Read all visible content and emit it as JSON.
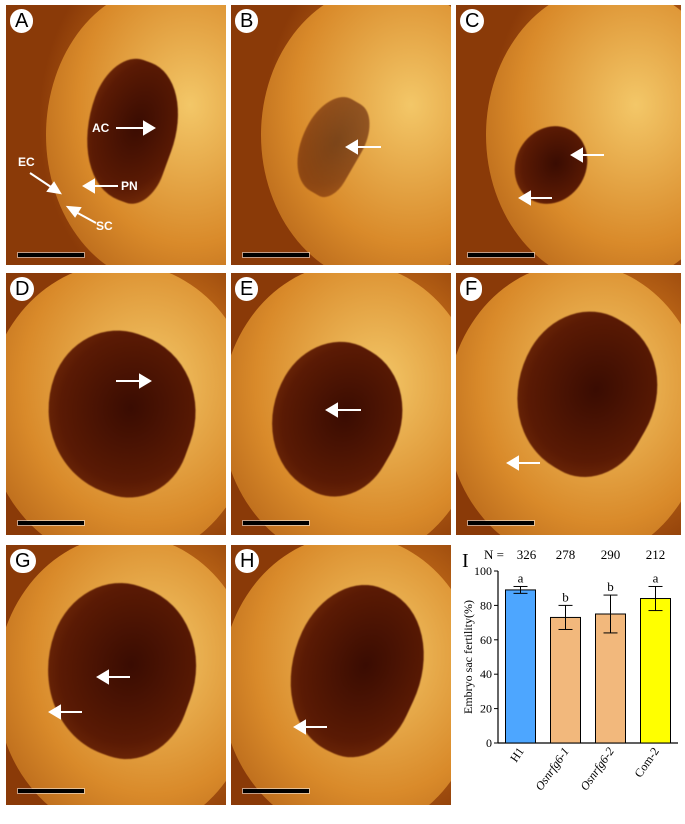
{
  "panels": [
    {
      "letter": "A",
      "labels": [
        "AC",
        "EC",
        "PN",
        "SC"
      ]
    },
    {
      "letter": "B",
      "labels": []
    },
    {
      "letter": "C",
      "labels": []
    },
    {
      "letter": "D",
      "labels": []
    },
    {
      "letter": "E",
      "labels": []
    },
    {
      "letter": "F",
      "labels": []
    },
    {
      "letter": "G",
      "labels": []
    },
    {
      "letter": "H",
      "labels": []
    }
  ],
  "colors": {
    "tissue_light": "#f3c768",
    "tissue_mid": "#d98a2a",
    "tissue_dark": "#8a3a08",
    "sac": "#3a0c02"
  },
  "chart_data": {
    "type": "bar",
    "panel_letter": "I",
    "categories": [
      "H1",
      "Osnrfg6-1",
      "Osnrfg6-2",
      "Com-2"
    ],
    "category_italic": [
      false,
      true,
      true,
      false
    ],
    "values": [
      89,
      73,
      75,
      84
    ],
    "errors": [
      2,
      7,
      11,
      7
    ],
    "colors": [
      "#4da6ff",
      "#f2b87c",
      "#f2b87c",
      "#ffff00"
    ],
    "significance": [
      "a",
      "b",
      "b",
      "a"
    ],
    "n_prefix": "N =",
    "n_values": [
      "326",
      "278",
      "290",
      "212"
    ],
    "ylabel": "Embryo sac fertility(%)",
    "ylim": [
      0,
      100
    ],
    "yticks": [
      0,
      20,
      40,
      60,
      80,
      100
    ]
  }
}
